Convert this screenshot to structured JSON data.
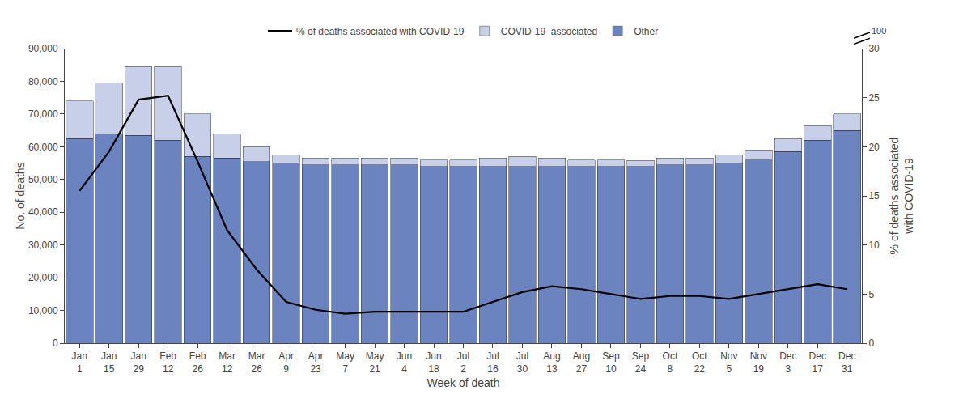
{
  "chart_data": {
    "type": "bar",
    "stacked": true,
    "grid": false,
    "legend": "top",
    "xlabel": "Week of death",
    "ylabel": "No. of deaths",
    "y2label": "% of deaths associated\nwith COVID-19",
    "categories": [
      "Jan 1",
      "Jan 15",
      "Jan 29",
      "Feb 12",
      "Feb 26",
      "Mar 12",
      "Mar 26",
      "Apr 9",
      "Apr 23",
      "May 7",
      "May 21",
      "Jun 4",
      "Jun 18",
      "Jul 2",
      "Jul 16",
      "Jul 30",
      "Aug 13",
      "Aug 27",
      "Sep 10",
      "Sep 24",
      "Oct 8",
      "Oct 22",
      "Nov 5",
      "Nov 19",
      "Dec 3",
      "Dec 17",
      "Dec 31"
    ],
    "series": [
      {
        "name": "Other",
        "type": "bar",
        "color": "#6b83bf",
        "values": [
          62500,
          64000,
          63500,
          62000,
          57000,
          56500,
          55500,
          55000,
          54500,
          54500,
          54500,
          54500,
          54000,
          54000,
          54000,
          54000,
          54000,
          54000,
          54000,
          54000,
          54500,
          54500,
          55000,
          56000,
          58500,
          62000,
          65000
        ]
      },
      {
        "name": "COVID-19–associated",
        "type": "bar",
        "color": "#c8cfe8",
        "values": [
          11500,
          15500,
          21000,
          22500,
          13000,
          7500,
          4500,
          2500,
          2000,
          2000,
          2000,
          2000,
          2000,
          2000,
          2500,
          3000,
          2500,
          2000,
          2000,
          1800,
          2000,
          2000,
          2500,
          3000,
          4000,
          4500,
          5000
        ]
      },
      {
        "name": "% of deaths associated with COVID-19",
        "type": "line",
        "axis": "y2",
        "color": "#000000",
        "values": [
          15.5,
          19.5,
          24.8,
          25.2,
          18.5,
          11.5,
          7.5,
          4.2,
          3.4,
          3.0,
          3.2,
          3.2,
          3.2,
          3.2,
          4.2,
          5.2,
          5.8,
          5.5,
          5.0,
          4.5,
          4.8,
          4.8,
          4.5,
          5.0,
          5.5,
          6.0,
          5.5
        ]
      }
    ],
    "ylim": [
      0,
      90000
    ],
    "yticks": [
      0,
      {
        "value": 10000,
        "label": "10,000"
      },
      {
        "value": 20000,
        "label": "20,000"
      },
      {
        "value": 30000,
        "label": "30,000"
      },
      {
        "value": 40000,
        "label": "40,000"
      },
      {
        "value": 50000,
        "label": "50,000"
      },
      {
        "value": 60000,
        "label": "60,000"
      },
      {
        "value": 70000,
        "label": "70,000"
      },
      {
        "value": 80000,
        "label": "80,000"
      },
      {
        "value": 90000,
        "label": "90,000"
      }
    ],
    "y2lim": [
      0,
      30
    ],
    "y2ticks": [
      0,
      5,
      10,
      15,
      20,
      25,
      30
    ],
    "annotations": [
      {
        "text": "100"
      }
    ]
  }
}
